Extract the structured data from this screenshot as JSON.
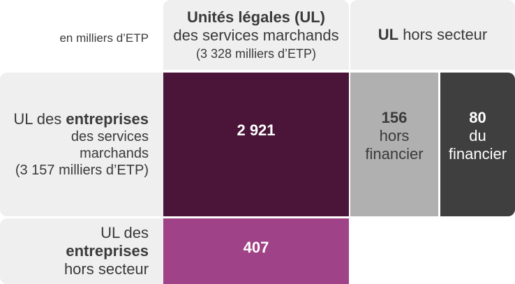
{
  "corner_label": "en milliers d’ETP",
  "columns": {
    "ul_services": {
      "title": "Unités légales (UL)",
      "subtitle": "des services marchands",
      "detail": "(3 328 milliers d’ETP)"
    },
    "ul_hors_secteur": {
      "bold": "UL",
      "rest": "hors secteur"
    }
  },
  "rows": {
    "entreprises_services": {
      "line1_plain": "UL des",
      "line1_bold": "entreprises",
      "line2": "des services marchands",
      "line3": "(3 157 milliers d’ETP)"
    },
    "entreprises_hors_secteur": {
      "line1": "UL des",
      "line2_bold": "entreprises",
      "line3": "hors secteur"
    }
  },
  "cells": {
    "main": {
      "value": "2 921",
      "color": "#4a1538"
    },
    "hors_financier": {
      "value": "156",
      "line1": "hors",
      "line2": "financier",
      "color": "#b0b0b0"
    },
    "du_financier": {
      "value": "80",
      "line1": "du",
      "line2": "financier",
      "color": "#3f3f3f"
    },
    "hors_secteur": {
      "value": "407",
      "color": "#a04287"
    }
  }
}
